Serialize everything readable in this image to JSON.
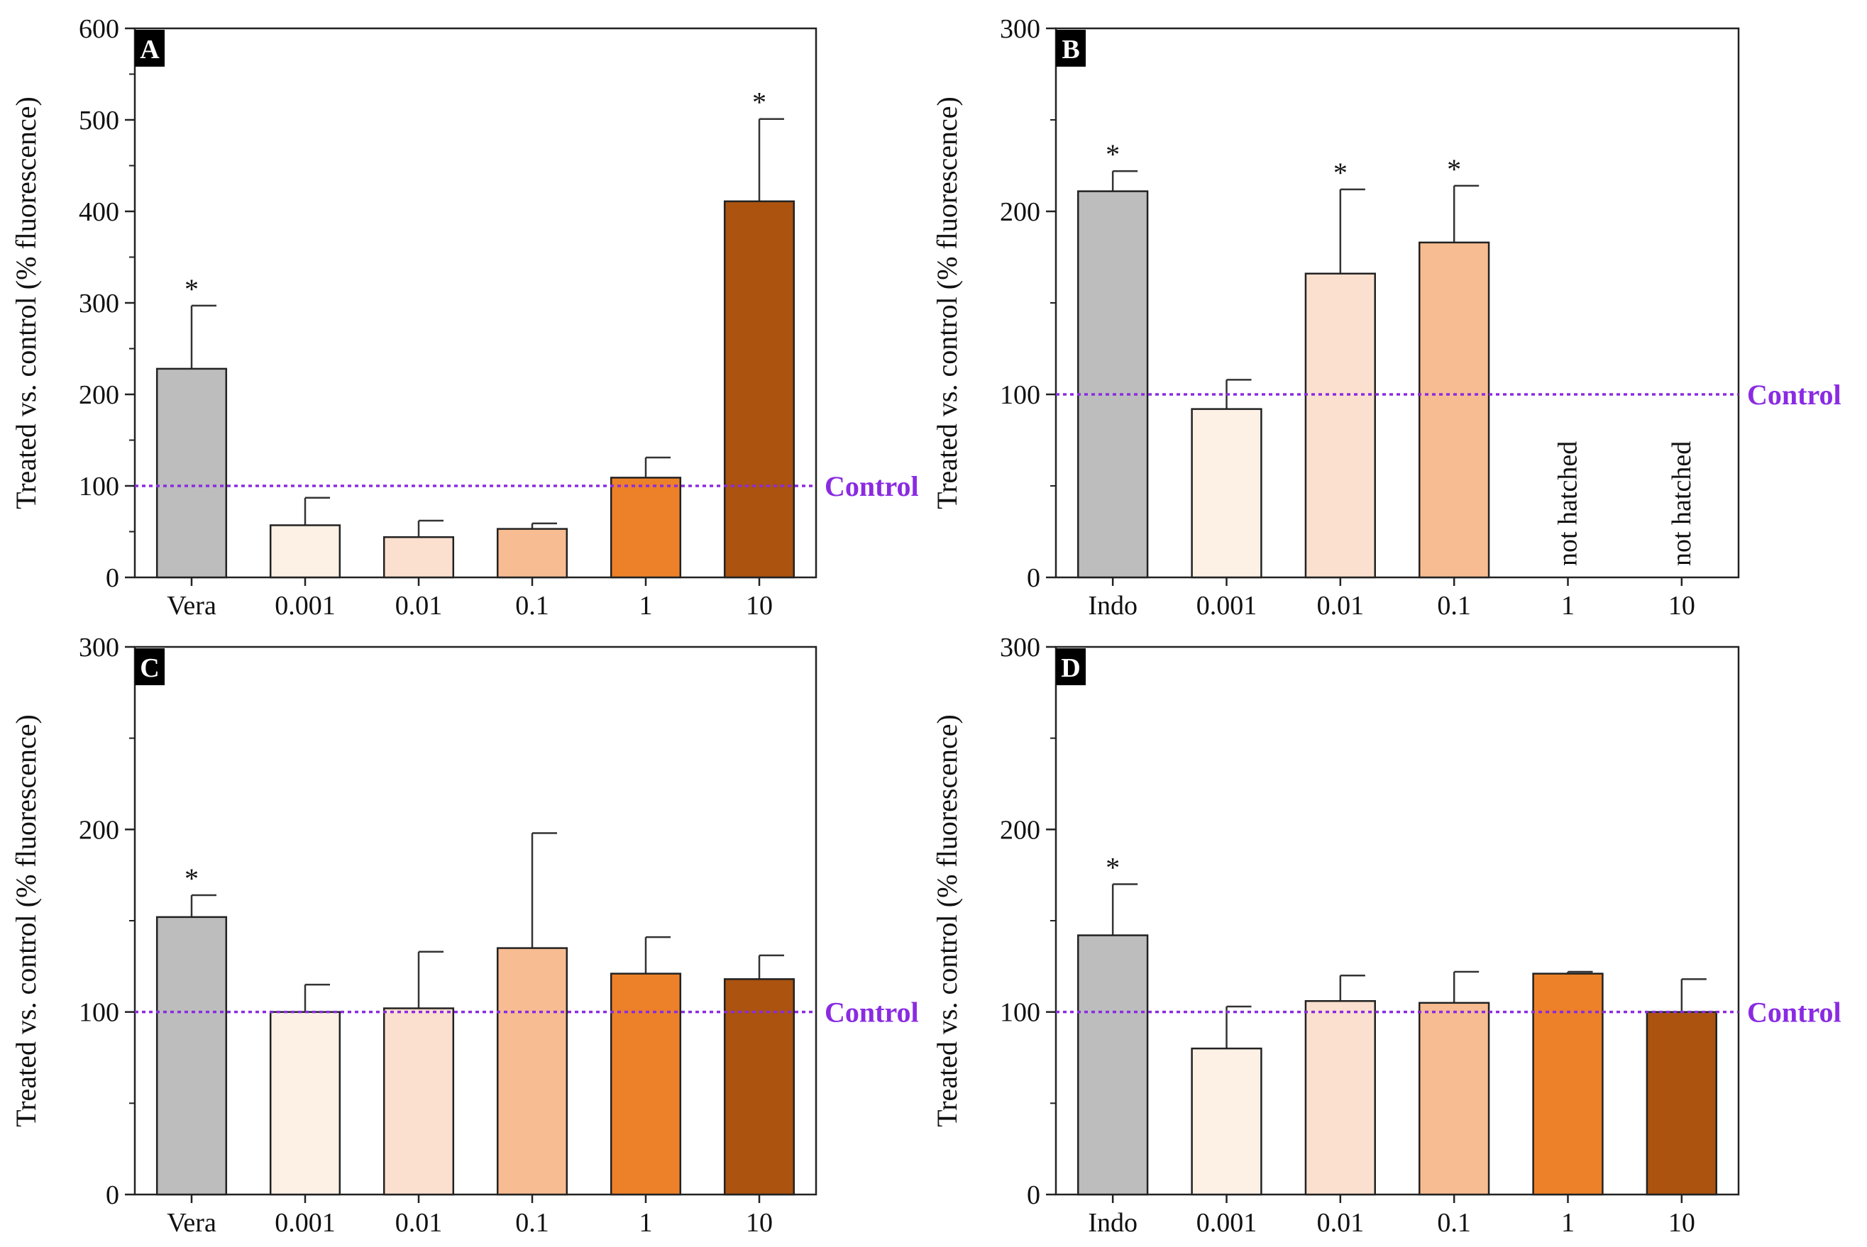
{
  "chart_data": [
    {
      "type": "bar",
      "panel": "A",
      "ylabel": "Treated vs. control (% fluorescence)",
      "ylim": [
        0,
        600
      ],
      "yticks": [
        0,
        100,
        200,
        300,
        400,
        500,
        600
      ],
      "categories": [
        "Vera",
        "0.001",
        "0.01",
        "0.1",
        "1",
        "10"
      ],
      "values": [
        228,
        57,
        44,
        53,
        109,
        411
      ],
      "errors": [
        69,
        30,
        18,
        6,
        22,
        90
      ],
      "significant": [
        true,
        false,
        false,
        false,
        false,
        true
      ],
      "notes": [
        "",
        "",
        "",
        "",
        "",
        ""
      ],
      "reference": {
        "value": 100,
        "label": "Control"
      },
      "colors": [
        "#bdbdbd",
        "#fdf0e5",
        "#fce0cf",
        "#f7bc91",
        "#ed8129",
        "#ab530f"
      ]
    },
    {
      "type": "bar",
      "panel": "B",
      "ylabel": "Treated vs. control (% fluorescence)",
      "ylim": [
        0,
        300
      ],
      "yticks": [
        0,
        100,
        200,
        300
      ],
      "categories": [
        "Indo",
        "0.001",
        "0.01",
        "0.1",
        "1",
        "10"
      ],
      "values": [
        211,
        92,
        166,
        183,
        null,
        null
      ],
      "errors": [
        11,
        16,
        46,
        31,
        null,
        null
      ],
      "significant": [
        true,
        false,
        true,
        true,
        false,
        false
      ],
      "notes": [
        "",
        "",
        "",
        "",
        "not hatched",
        "not hatched"
      ],
      "reference": {
        "value": 100,
        "label": "Control"
      },
      "colors": [
        "#bdbdbd",
        "#fdf0e5",
        "#fce0cf",
        "#f7bc91",
        "#ed8129",
        "#ab530f"
      ]
    },
    {
      "type": "bar",
      "panel": "C",
      "ylabel": "Treated vs. control (% fluorescence)",
      "ylim": [
        0,
        300
      ],
      "yticks": [
        0,
        100,
        200,
        300
      ],
      "categories": [
        "Vera",
        "0.001",
        "0.01",
        "0.1",
        "1",
        "10"
      ],
      "values": [
        152,
        100,
        102,
        135,
        121,
        118
      ],
      "errors": [
        12,
        15,
        31,
        63,
        20,
        13
      ],
      "significant": [
        true,
        false,
        false,
        false,
        false,
        false
      ],
      "notes": [
        "",
        "",
        "",
        "",
        "",
        ""
      ],
      "reference": {
        "value": 100,
        "label": "Control"
      },
      "colors": [
        "#bdbdbd",
        "#fdf0e5",
        "#fce0cf",
        "#f7bc91",
        "#ed8129",
        "#ab530f"
      ]
    },
    {
      "type": "bar",
      "panel": "D",
      "ylabel": "Treated vs. control (% fluorescence)",
      "ylim": [
        0,
        300
      ],
      "yticks": [
        0,
        100,
        200,
        300
      ],
      "categories": [
        "Indo",
        "0.001",
        "0.01",
        "0.1",
        "1",
        "10"
      ],
      "values": [
        142,
        80,
        106,
        105,
        121,
        100
      ],
      "errors": [
        28,
        23,
        14,
        17,
        1,
        18
      ],
      "significant": [
        true,
        false,
        false,
        false,
        false,
        false
      ],
      "notes": [
        "",
        "",
        "",
        "",
        "",
        ""
      ],
      "reference": {
        "value": 100,
        "label": "Control"
      },
      "colors": [
        "#bdbdbd",
        "#fdf0e5",
        "#fce0cf",
        "#f7bc91",
        "#ed8129",
        "#ab530f"
      ]
    }
  ],
  "significance_marker": "*",
  "reference_color": "#8a2be2"
}
